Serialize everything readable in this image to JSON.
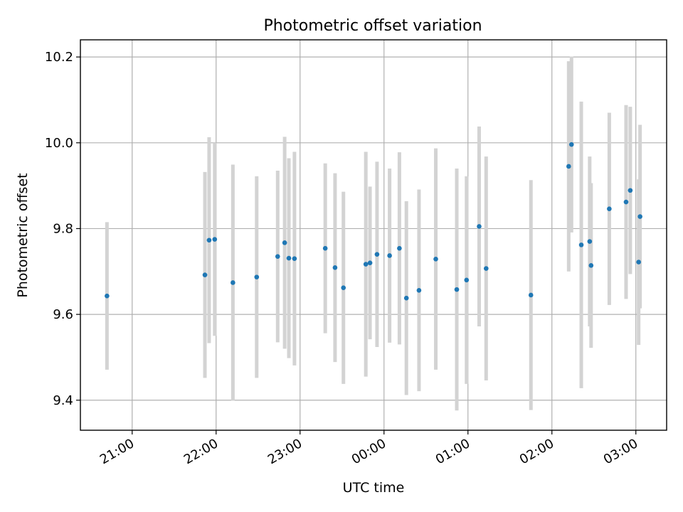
{
  "chart_data": {
    "type": "scatter",
    "title": "Photometric offset variation",
    "xlabel": "UTC time",
    "ylabel": "Photometric offset",
    "grid": true,
    "x_tick_labels": [
      "21:00",
      "22:00",
      "23:00",
      "00:00",
      "01:00",
      "02:00",
      "03:00"
    ],
    "y_tick_labels": [
      "9.4",
      "9.6",
      "9.8",
      "10.0",
      "10.2"
    ],
    "y_ticks": [
      9.4,
      9.6,
      9.8,
      10.0,
      10.2
    ],
    "ylim": [
      9.33,
      10.24
    ],
    "xlim": [
      "20:23",
      "03:22"
    ],
    "colors": {
      "point": "#1f77b4",
      "errorbar": "#d3d3d3"
    },
    "series": [
      {
        "points": [
          {
            "t": "20:42",
            "y": 9.643,
            "err": 0.172
          },
          {
            "t": "21:52",
            "y": 9.692,
            "err": 0.24
          },
          {
            "t": "21:55",
            "y": 9.773,
            "err": 0.24
          },
          {
            "t": "21:59",
            "y": 9.775,
            "err": 0.225
          },
          {
            "t": "22:12",
            "y": 9.674,
            "err": 0.275
          },
          {
            "t": "22:29",
            "y": 9.687,
            "err": 0.235
          },
          {
            "t": "22:44",
            "y": 9.735,
            "err": 0.2
          },
          {
            "t": "22:49",
            "y": 9.767,
            "err": 0.247
          },
          {
            "t": "22:52",
            "y": 9.731,
            "err": 0.233
          },
          {
            "t": "22:56",
            "y": 9.73,
            "err": 0.249
          },
          {
            "t": "23:18",
            "y": 9.754,
            "err": 0.198
          },
          {
            "t": "23:25",
            "y": 9.709,
            "err": 0.22
          },
          {
            "t": "23:31",
            "y": 9.662,
            "err": 0.224
          },
          {
            "t": "23:47",
            "y": 9.717,
            "err": 0.262
          },
          {
            "t": "23:50",
            "y": 9.72,
            "err": 0.178
          },
          {
            "t": "23:55",
            "y": 9.74,
            "err": 0.216
          },
          {
            "t": "00:04",
            "y": 9.737,
            "err": 0.203
          },
          {
            "t": "00:11",
            "y": 9.754,
            "err": 0.224
          },
          {
            "t": "00:16",
            "y": 9.638,
            "err": 0.226
          },
          {
            "t": "00:25",
            "y": 9.656,
            "err": 0.235
          },
          {
            "t": "00:37",
            "y": 9.729,
            "err": 0.258
          },
          {
            "t": "00:52",
            "y": 9.658,
            "err": 0.282
          },
          {
            "t": "00:59",
            "y": 9.68,
            "err": 0.242
          },
          {
            "t": "01:08",
            "y": 9.805,
            "err": 0.233
          },
          {
            "t": "01:13",
            "y": 9.707,
            "err": 0.261
          },
          {
            "t": "01:45",
            "y": 9.645,
            "err": 0.268
          },
          {
            "t": "02:12",
            "y": 9.945,
            "err": 0.245
          },
          {
            "t": "02:14",
            "y": 9.996,
            "err": 0.205
          },
          {
            "t": "02:21",
            "y": 9.762,
            "err": 0.334
          },
          {
            "t": "02:27",
            "y": 9.77,
            "err": 0.198
          },
          {
            "t": "02:28",
            "y": 9.714,
            "err": 0.192
          },
          {
            "t": "02:41",
            "y": 9.846,
            "err": 0.224
          },
          {
            "t": "02:53",
            "y": 9.862,
            "err": 0.226
          },
          {
            "t": "02:56",
            "y": 9.889,
            "err": 0.195
          },
          {
            "t": "03:02",
            "y": 9.722,
            "err": 0.193
          },
          {
            "t": "03:03",
            "y": 9.828,
            "err": 0.214
          }
        ]
      }
    ]
  }
}
